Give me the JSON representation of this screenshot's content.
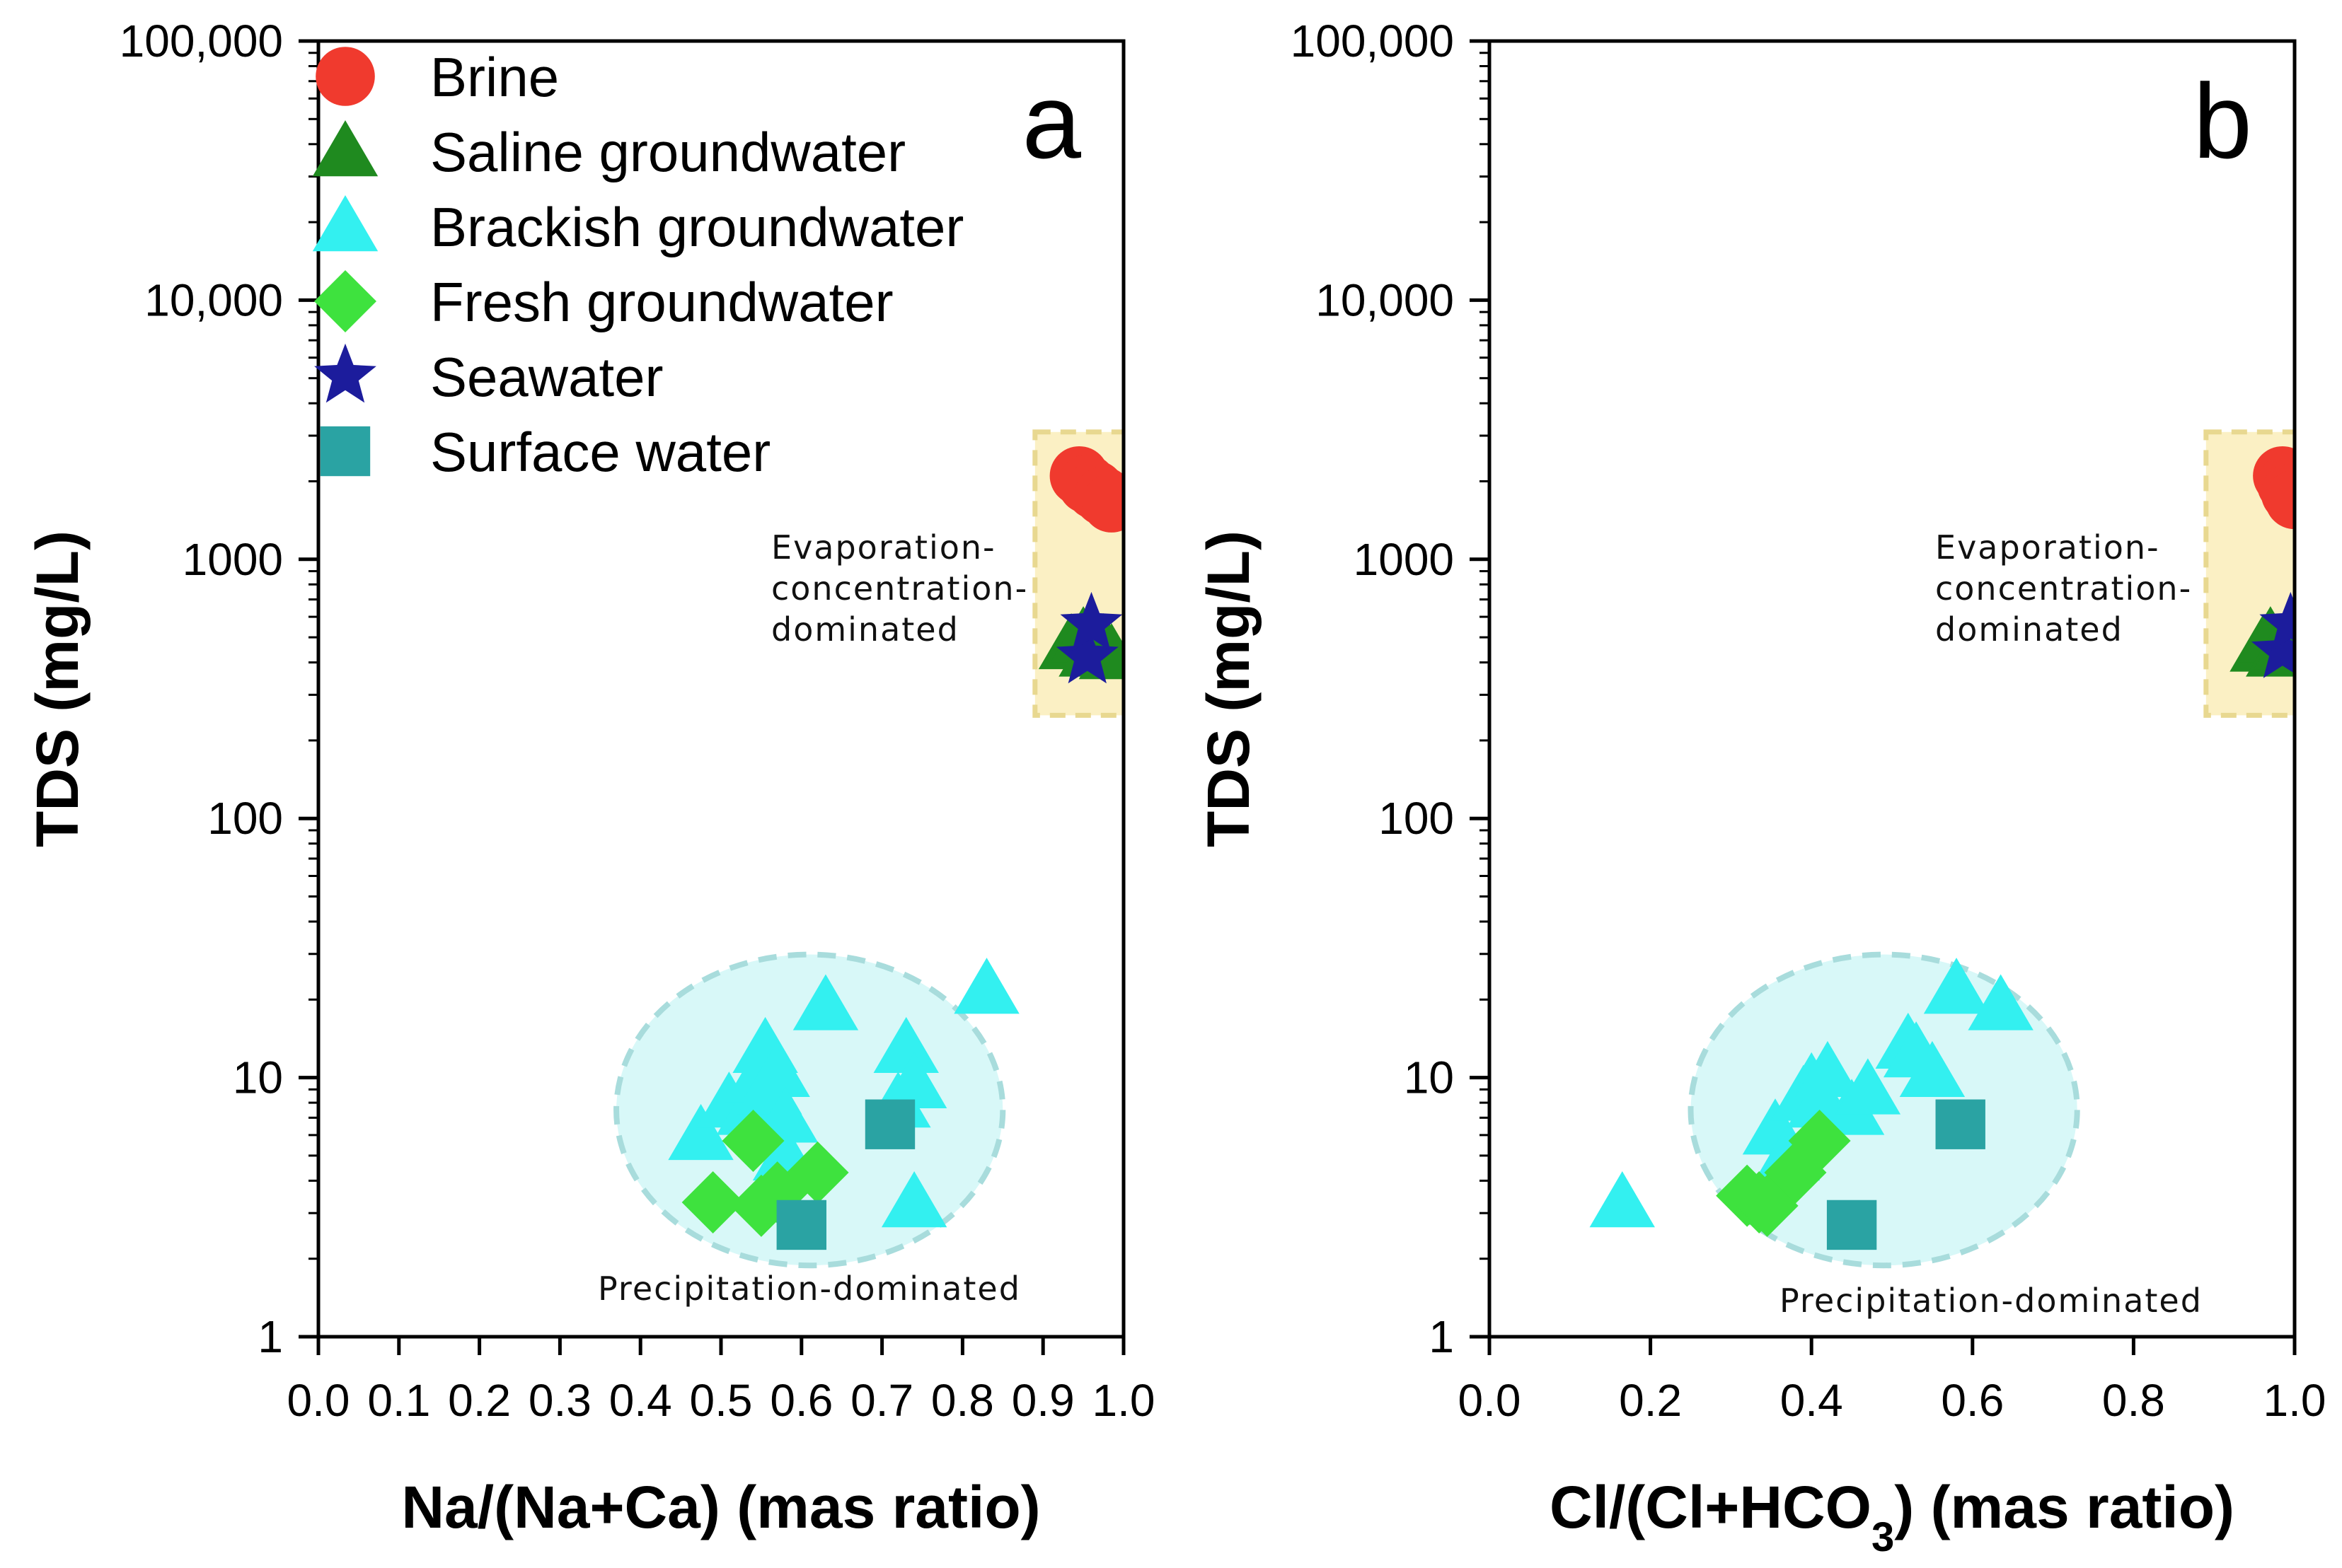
{
  "colors": {
    "brine": "#f03a2e",
    "saline": "#1f8a1f",
    "brackish": "#33f0f0",
    "fresh": "#3ee23e",
    "seawater": "#1c1c9c",
    "surface": "#2aa3a3",
    "evap_region": "#fbf0c4",
    "precip_region": "#d8f8f8"
  },
  "legend": [
    {
      "key": "brine",
      "label": "Brine",
      "icon": "circle"
    },
    {
      "key": "saline",
      "label": "Saline groundwater",
      "icon": "triangle"
    },
    {
      "key": "brackish",
      "label": "Brackish groundwater",
      "icon": "triangle"
    },
    {
      "key": "fresh",
      "label": "Fresh groundwater",
      "icon": "diamond"
    },
    {
      "key": "seawater",
      "label": "Seawater",
      "icon": "star"
    },
    {
      "key": "surface",
      "label": "Surface water",
      "icon": "square"
    }
  ],
  "chart_data": [
    {
      "type": "scatter",
      "panel": "a",
      "xlabel": "Na/(Na+Ca) (mas ratio)",
      "ylabel": "TDS (mg/L)",
      "xlim": [
        0.0,
        1.0
      ],
      "ylim": [
        1,
        100000
      ],
      "yscale": "log",
      "xticks": [
        0.0,
        0.1,
        0.2,
        0.3,
        0.4,
        0.5,
        0.6,
        0.7,
        0.8,
        0.9,
        1.0
      ],
      "xtick_labels": [
        "0.0",
        "0.1",
        "0.2",
        "0.3",
        "0.4",
        "0.5",
        "0.6",
        "0.7",
        "0.8",
        "0.9",
        "1.0"
      ],
      "yticks": [
        1,
        10,
        100,
        1000,
        10000,
        100000
      ],
      "ytick_labels": [
        "1",
        "10",
        "100",
        "1000",
        "10,000",
        "100,000"
      ],
      "annotations": {
        "evaporation": "Evaporation-\nconcentration-\ndominated",
        "precipitation": "Precipitation-dominated"
      },
      "regions": {
        "evaporation": {
          "x": [
            0.89,
            1.0
          ],
          "y": [
            250,
            3100
          ]
        },
        "precipitation": {
          "cx": 0.61,
          "cy": 7.5,
          "rx": 0.24,
          "ry_log": 0.6
        }
      },
      "series": [
        {
          "key": "brine",
          "name": "Brine",
          "x": [
            0.945,
            0.955,
            0.965,
            0.975,
            0.985
          ],
          "y": [
            2100,
            1950,
            1850,
            1750,
            1650
          ]
        },
        {
          "key": "saline",
          "name": "Saline groundwater",
          "x": [
            0.935,
            0.95,
            0.96,
            0.975,
            0.985
          ],
          "y": [
            470,
            500,
            440,
            470,
            430
          ]
        },
        {
          "key": "brackish",
          "name": "Brackish groundwater",
          "x": [
            0.475,
            0.51,
            0.535,
            0.545,
            0.555,
            0.56,
            0.57,
            0.58,
            0.63,
            0.72,
            0.73,
            0.74,
            0.74,
            0.83,
            0.58
          ],
          "y": [
            6.0,
            8.0,
            7.5,
            10.0,
            13.0,
            9.0,
            10.5,
            5.0,
            19.0,
            8.0,
            13.0,
            9.5,
            3.3,
            22.0,
            7.0
          ]
        },
        {
          "key": "fresh",
          "name": "Fresh groundwater",
          "x": [
            0.49,
            0.54,
            0.55,
            0.57,
            0.62
          ],
          "y": [
            3.3,
            5.7,
            3.2,
            3.6,
            4.3
          ]
        },
        {
          "key": "seawater",
          "name": "Seawater",
          "x": [
            0.955,
            0.96
          ],
          "y": [
            420,
            560
          ]
        },
        {
          "key": "surface",
          "name": "Surface water",
          "x": [
            0.6,
            0.71
          ],
          "y": [
            2.7,
            6.6
          ]
        }
      ]
    },
    {
      "type": "scatter",
      "panel": "b",
      "xlabel": "Cl/(Cl+HCO3) (mas ratio)",
      "ylabel": "TDS (mg/L)",
      "xlim": [
        0.0,
        1.0
      ],
      "ylim": [
        1,
        100000
      ],
      "yscale": "log",
      "xticks": [
        0.0,
        0.2,
        0.4,
        0.6,
        0.8,
        1.0
      ],
      "xtick_labels": [
        "0.0",
        "0.2",
        "0.4",
        "0.6",
        "0.8",
        "1.0"
      ],
      "yticks": [
        1,
        10,
        100,
        1000,
        10000,
        100000
      ],
      "ytick_labels": [
        "1",
        "10",
        "100",
        "1000",
        "10,000",
        "100,000"
      ],
      "annotations": {
        "evaporation": "Evaporation-\nconcentration-\ndominated",
        "precipitation": "Precipitation-dominated"
      },
      "regions": {
        "evaporation": {
          "x": [
            0.89,
            1.0
          ],
          "y": [
            250,
            3100
          ]
        },
        "precipitation": {
          "cx": 0.49,
          "cy": 7.5,
          "rx": 0.24,
          "ry_log": 0.6
        }
      },
      "series": [
        {
          "key": "brine",
          "name": "Brine",
          "x": [
            0.985,
            0.99,
            0.995,
            1.0
          ],
          "y": [
            2100,
            1950,
            1800,
            1700
          ]
        },
        {
          "key": "saline",
          "name": "Saline groundwater",
          "x": [
            0.96,
            0.97,
            0.98,
            0.99
          ],
          "y": [
            460,
            500,
            440,
            470
          ]
        },
        {
          "key": "brackish",
          "name": "Brackish groundwater",
          "x": [
            0.165,
            0.355,
            0.37,
            0.39,
            0.4,
            0.41,
            0.42,
            0.45,
            0.47,
            0.52,
            0.53,
            0.55,
            0.58,
            0.635
          ],
          "y": [
            3.3,
            6.3,
            5.0,
            8.5,
            9.5,
            8.0,
            10.5,
            7.5,
            9.0,
            13.5,
            12.5,
            10.5,
            22.0,
            19.0
          ]
        },
        {
          "key": "fresh",
          "name": "Fresh groundwater",
          "x": [
            0.32,
            0.335,
            0.345,
            0.38,
            0.41
          ],
          "y": [
            3.5,
            3.3,
            3.2,
            4.3,
            5.7
          ]
        },
        {
          "key": "seawater",
          "name": "Seawater",
          "x": [
            0.985,
            0.995
          ],
          "y": [
            440,
            560
          ]
        },
        {
          "key": "surface",
          "name": "Surface water",
          "x": [
            0.45,
            0.585
          ],
          "y": [
            2.7,
            6.6
          ]
        }
      ]
    }
  ]
}
